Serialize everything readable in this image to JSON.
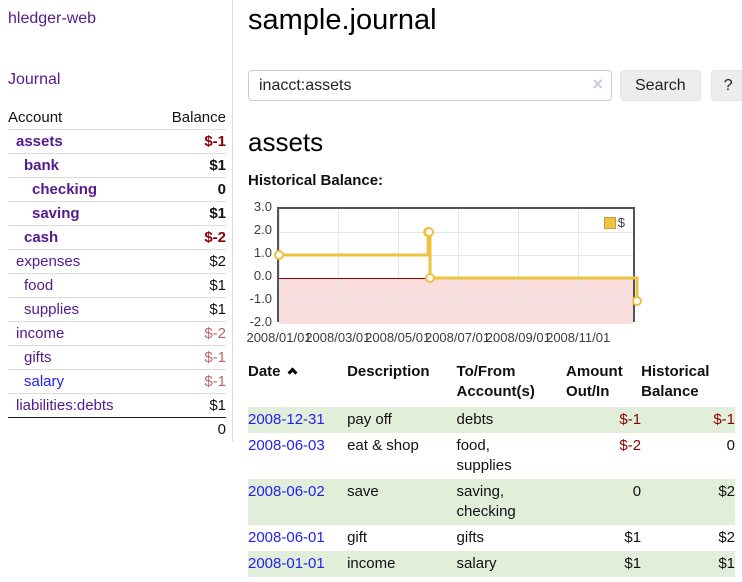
{
  "app": {
    "title": "hledger-web"
  },
  "colors": {
    "link_visited": "#551a8b",
    "link_unvisited": "#2222ee",
    "negative_strong": "#8b0000",
    "negative_soft": "#be6469",
    "row_stripe_green": "#e1eed9",
    "chart_line_gold": "#edc240",
    "chart_negative_fill": "#fadddd",
    "chart_zero_line": "#8b0000",
    "chart_grid": "#e6e6e6",
    "chart_border": "#545454"
  },
  "sidebar": {
    "nav_journal": "Journal",
    "table": {
      "headers": {
        "account": "Account",
        "balance": "Balance"
      },
      "rows": [
        {
          "account": "assets",
          "indent": 1,
          "bold": true,
          "link_style": "visited",
          "balance": "$-1",
          "balance_style": "neg-strong"
        },
        {
          "account": "bank",
          "indent": 2,
          "bold": true,
          "link_style": "visited",
          "balance": "$1",
          "balance_style": "pos"
        },
        {
          "account": "checking",
          "indent": 3,
          "bold": true,
          "link_style": "visited",
          "balance": "0",
          "balance_style": "pos"
        },
        {
          "account": "saving",
          "indent": 3,
          "bold": true,
          "link_style": "visited",
          "balance": "$1",
          "balance_style": "pos"
        },
        {
          "account": "cash",
          "indent": 2,
          "bold": true,
          "link_style": "visited",
          "balance": "$-2",
          "balance_style": "neg-strong"
        },
        {
          "account": "expenses",
          "indent": 1,
          "bold": false,
          "link_style": "visited",
          "balance": "$2",
          "balance_style": "pos"
        },
        {
          "account": "food",
          "indent": 2,
          "bold": false,
          "link_style": "visited",
          "balance": "$1",
          "balance_style": "pos"
        },
        {
          "account": "supplies",
          "indent": 2,
          "bold": false,
          "link_style": "visited",
          "balance": "$1",
          "balance_style": "pos"
        },
        {
          "account": "income",
          "indent": 1,
          "bold": false,
          "link_style": "visited",
          "balance": "$-2",
          "balance_style": "neg-soft"
        },
        {
          "account": "gifts",
          "indent": 2,
          "bold": false,
          "link_style": "visited",
          "balance": "$-1",
          "balance_style": "neg-soft"
        },
        {
          "account": "salary",
          "indent": 2,
          "bold": false,
          "link_style": "unvisited",
          "balance": "$-1",
          "balance_style": "neg-soft"
        },
        {
          "account": "liabilities:debts",
          "indent": 1,
          "bold": false,
          "link_style": "visited",
          "balance": "$1",
          "balance_style": "pos"
        }
      ],
      "total": "0"
    }
  },
  "main": {
    "title": "sample.journal",
    "search": {
      "value": "inacct:assets",
      "clear_icon": "×",
      "button_label": "Search",
      "help_label": "?"
    },
    "account_heading": "assets"
  },
  "chart_data": {
    "type": "line",
    "step": true,
    "title": "Historical Balance:",
    "series": [
      {
        "name": "$",
        "color": "#edc240",
        "marker": "circle-hollow",
        "points": [
          [
            "2008-01-01",
            1
          ],
          [
            "2008-06-01",
            2
          ],
          [
            "2008-06-02",
            2
          ],
          [
            "2008-06-03",
            0
          ],
          [
            "2008-12-31",
            -1
          ]
        ]
      }
    ],
    "xrange": [
      "2008-01-01",
      "2008-12-31"
    ],
    "ylim": [
      -2,
      3
    ],
    "x_ticks": [
      "2008/01/01",
      "2008/03/01",
      "2008/05/01",
      "2008/07/01",
      "2008/09/01",
      "2008/11/01"
    ],
    "y_ticks": [
      "3.0",
      "2.0",
      "1.0",
      "0.0",
      "-1.0",
      "-2.0"
    ],
    "grid": true,
    "legend_position": "top-right",
    "negative_region_shaded": true
  },
  "register": {
    "headers": {
      "date": "Date",
      "description": "Description",
      "accounts": "To/From Account(s)",
      "amount": "Amount Out/In",
      "balance": "Historical Balance"
    },
    "rows": [
      {
        "date": "2008-12-31",
        "description": "pay off",
        "accounts": "debts",
        "amount": "$-1",
        "amount_style": "neg-strong",
        "balance": "$-1",
        "balance_style": "neg-strong"
      },
      {
        "date": "2008-06-03",
        "description": "eat & shop",
        "accounts": "food, supplies",
        "amount": "$-2",
        "amount_style": "neg-strong",
        "balance": "0",
        "balance_style": "pos"
      },
      {
        "date": "2008-06-02",
        "description": "save",
        "accounts": "saving, checking",
        "amount": "0",
        "amount_style": "pos",
        "balance": "$2",
        "balance_style": "pos"
      },
      {
        "date": "2008-06-01",
        "description": "gift",
        "accounts": "gifts",
        "amount": "$1",
        "amount_style": "pos",
        "balance": "$2",
        "balance_style": "pos"
      },
      {
        "date": "2008-01-01",
        "description": "income",
        "accounts": "salary",
        "amount": "$1",
        "amount_style": "pos",
        "balance": "$1",
        "balance_style": "pos"
      }
    ]
  }
}
